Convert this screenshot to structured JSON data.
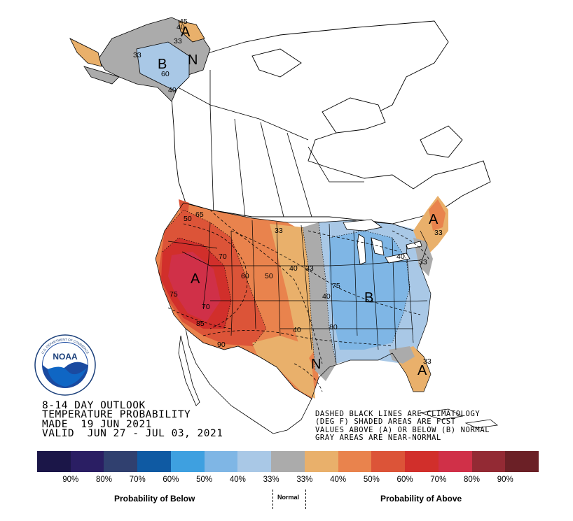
{
  "title": {
    "line1": "8-14 DAY OUTLOOK",
    "line2": "TEMPERATURE PROBABILITY",
    "line3": "MADE  19 JUN 2021",
    "line4": "VALID  JUN 27 - JUL 03, 2021"
  },
  "notes": {
    "line1": "DASHED BLACK LINES ARE CLIMATOLOGY",
    "line2": "(DEG F) SHADED AREAS ARE FCST",
    "line3": "VALUES ABOVE (A) OR BELOW (B) NORMAL",
    "line4": "GRAY AREAS ARE NEAR-NORMAL"
  },
  "logo": {
    "text": "NOAA",
    "ring_text": "U.S. DEPARTMENT OF COMMERCE"
  },
  "map_labels": {
    "alaska_above": "A",
    "alaska_below": "B",
    "alaska_normal": "N",
    "west_above": "A",
    "northeast_above": "A",
    "east_below": "B",
    "south_normal": "N",
    "florida_above": "A"
  },
  "contour_labels": [
    "33",
    "40",
    "33",
    "60",
    "40",
    "50",
    "65",
    "70",
    "60",
    "50",
    "40",
    "33",
    "75",
    "70",
    "85",
    "90",
    "40",
    "75",
    "80",
    "33",
    "40",
    "33",
    "33",
    "45",
    "40",
    "33"
  ],
  "legend": {
    "colors": [
      "#1b1648",
      "#2a1e63",
      "#30406f",
      "#0f5aa3",
      "#3ea0e0",
      "#7fb6e5",
      "#a9c8e6",
      "#ababab",
      "#e9b06b",
      "#e9834d",
      "#dc5438",
      "#d12f2b",
      "#d03048",
      "#932a34",
      "#6b2026"
    ],
    "tick_labels": [
      "90%",
      "80%",
      "70%",
      "60%",
      "50%",
      "40%",
      "33%",
      "33%",
      "40%",
      "50%",
      "60%",
      "70%",
      "80%",
      "90%"
    ],
    "below_caption": "Probability of Below",
    "normal_caption": "Normal",
    "above_caption": "Probability of Above"
  }
}
